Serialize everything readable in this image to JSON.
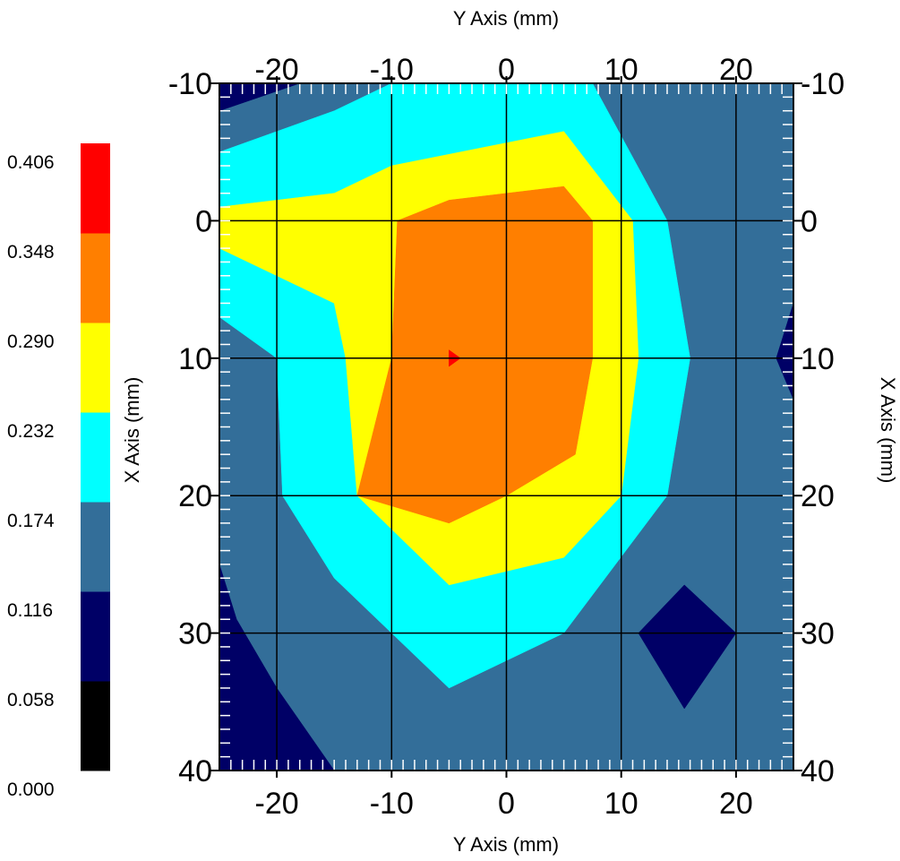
{
  "chart_data": {
    "type": "contour",
    "x_axis_title": "Y Axis (mm)",
    "y_axis_title": "X Axis (mm)",
    "xlim": [
      -25,
      25
    ],
    "ylim": [
      -10,
      40
    ],
    "y_inverted": true,
    "xticks": [
      -20,
      -10,
      0,
      10,
      20
    ],
    "yticks": [
      -10,
      0,
      10,
      20,
      30,
      40
    ],
    "xtick_labels": [
      "-20",
      "-10",
      "0",
      "10",
      "20"
    ],
    "ytick_labels": [
      "-10",
      "0",
      "10",
      "20",
      "30",
      "40"
    ],
    "grid": true,
    "colorbar": {
      "levels": [
        "0.000",
        "0.058",
        "0.116",
        "0.174",
        "0.232",
        "0.290",
        "0.348",
        "0.406"
      ],
      "colors": [
        "#000000",
        "#000066",
        "#336e99",
        "#00ffff",
        "#ffff00",
        "#ff7f00",
        "#ff0000"
      ]
    },
    "regions": [
      {
        "level": 2,
        "color": "#336e99",
        "points": [
          [
            -25,
            -10
          ],
          [
            25,
            -10
          ],
          [
            25,
            40
          ],
          [
            -25,
            40
          ]
        ]
      },
      {
        "level": 1,
        "color": "#000066",
        "points": [
          [
            -25,
            -10
          ],
          [
            -18,
            -10
          ],
          [
            -25,
            -8
          ]
        ]
      },
      {
        "level": 1,
        "color": "#000066",
        "points": [
          [
            -25,
            25
          ],
          [
            -23.5,
            29
          ],
          [
            -20,
            34
          ],
          [
            -15,
            40
          ],
          [
            -25,
            40
          ]
        ]
      },
      {
        "level": 1,
        "color": "#000066",
        "points": [
          [
            15.5,
            26.5
          ],
          [
            20,
            30
          ],
          [
            15.5,
            35.5
          ],
          [
            11.5,
            30
          ]
        ]
      },
      {
        "level": 1,
        "color": "#000066",
        "points": [
          [
            25,
            6
          ],
          [
            25,
            13
          ],
          [
            23.5,
            10
          ]
        ]
      },
      {
        "level": 3,
        "color": "#00ffff",
        "points": [
          [
            -25,
            -5
          ],
          [
            -15,
            -8
          ],
          [
            -10,
            -10
          ],
          [
            7.5,
            -10
          ],
          [
            14,
            0
          ],
          [
            16,
            10
          ],
          [
            14,
            20
          ],
          [
            5,
            30
          ],
          [
            -5,
            34
          ],
          [
            -15,
            26
          ],
          [
            -19.5,
            20
          ],
          [
            -20,
            10
          ],
          [
            -25,
            7
          ]
        ]
      },
      {
        "level": 4,
        "color": "#ffff00",
        "points": [
          [
            -25,
            -1
          ],
          [
            -15,
            -2
          ],
          [
            -10,
            -4
          ],
          [
            5,
            -6.5
          ],
          [
            11,
            0
          ],
          [
            11.5,
            10
          ],
          [
            10,
            20
          ],
          [
            5,
            24.5
          ],
          [
            -5,
            26.5
          ],
          [
            -13,
            20
          ],
          [
            -14,
            10
          ],
          [
            -15,
            6
          ],
          [
            -25,
            2
          ]
        ]
      },
      {
        "level": 5,
        "color": "#ff7f00",
        "points": [
          [
            -9.5,
            0
          ],
          [
            -5,
            -1.5
          ],
          [
            5,
            -2.5
          ],
          [
            7.5,
            0
          ],
          [
            7.5,
            10
          ],
          [
            6,
            17
          ],
          [
            0,
            20
          ],
          [
            -5,
            22
          ],
          [
            -13,
            20
          ],
          [
            -10,
            10
          ]
        ]
      },
      {
        "level": 6,
        "color": "#ff0000",
        "points": [
          [
            -5,
            9.4
          ],
          [
            -4,
            10
          ],
          [
            -5,
            10.6
          ]
        ]
      }
    ]
  }
}
